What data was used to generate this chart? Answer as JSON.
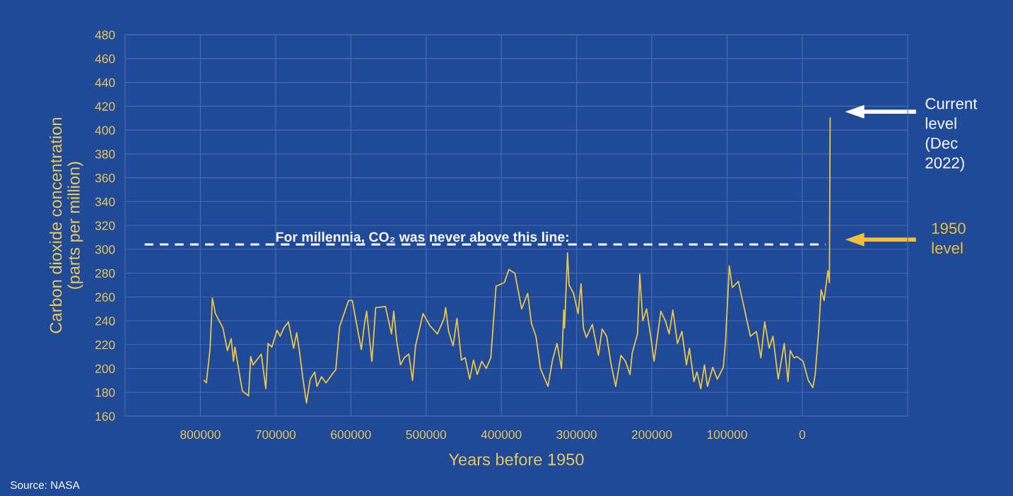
{
  "chart_data": {
    "type": "line",
    "xlabel": "Years before 1950",
    "ylabel": "Carbon dioxide concentration\n(parts per million)",
    "xlim": [
      900000,
      -140000
    ],
    "xticks": [
      800000,
      700000,
      600000,
      500000,
      400000,
      300000,
      200000,
      100000,
      0
    ],
    "ylim": [
      160,
      480
    ],
    "yticks": [
      160,
      180,
      200,
      220,
      240,
      260,
      280,
      300,
      320,
      340,
      360,
      380,
      400,
      420,
      440,
      460,
      480
    ],
    "grid": true,
    "line_style": "solid",
    "marker": "none",
    "series": [
      {
        "color": "#e8c547",
        "x": [
          795000,
          792000,
          787000,
          784000,
          780000,
          770000,
          764000,
          759000,
          756000,
          754000,
          748000,
          744000,
          736000,
          733000,
          730000,
          719000,
          713000,
          710000,
          705000,
          698000,
          694000,
          689000,
          683000,
          676000,
          672000,
          668000,
          664000,
          659000,
          654000,
          648000,
          645000,
          639000,
          633000,
          625000,
          620000,
          615000,
          603000,
          598000,
          592000,
          586000,
          582000,
          579000,
          572000,
          567000,
          554000,
          546000,
          543000,
          539000,
          534000,
          529000,
          523000,
          518000,
          514000,
          504000,
          495000,
          485000,
          476000,
          474000,
          470000,
          464000,
          459000,
          453000,
          448000,
          442000,
          437000,
          432000,
          426000,
          420000,
          414000,
          407000,
          396000,
          390000,
          382000,
          373000,
          365000,
          360000,
          354000,
          348000,
          338000,
          332000,
          326000,
          320000,
          317000,
          316000,
          312000,
          310000,
          304000,
          298000,
          294000,
          291000,
          287000,
          279000,
          271000,
          266000,
          260000,
          254000,
          248000,
          241000,
          235000,
          229000,
          226000,
          219000,
          216000,
          212000,
          207000,
          201000,
          197000,
          188000,
          182000,
          177000,
          172000,
          166000,
          160000,
          154000,
          150000,
          144000,
          140000,
          135000,
          130000,
          126000,
          119000,
          113000,
          105000,
          102000,
          97000,
          93000,
          85000,
          77000,
          69000,
          61000,
          55000,
          50000,
          44000,
          39000,
          32000,
          24000,
          19000,
          16000,
          11000,
          7000,
          -1000,
          -8000,
          -14000,
          -17000,
          -22000,
          -25000,
          -29000,
          -34000,
          -36000,
          -37000
        ],
        "values": [
          190,
          188,
          217,
          259,
          246,
          234,
          215,
          225,
          206,
          218,
          195,
          181,
          177,
          210,
          203,
          212,
          183,
          221,
          218,
          232,
          227,
          234,
          239,
          217,
          230,
          213,
          193,
          171,
          191,
          197,
          185,
          193,
          188,
          195,
          199,
          235,
          257,
          257,
          236,
          216,
          237,
          248,
          206,
          251,
          252,
          229,
          248,
          223,
          203,
          209,
          212,
          190,
          219,
          246,
          236,
          229,
          242,
          251,
          231,
          219,
          242,
          207,
          209,
          191,
          207,
          195,
          206,
          200,
          209,
          269,
          272,
          283,
          280,
          250,
          263,
          238,
          227,
          200,
          185,
          207,
          221,
          200,
          249,
          234,
          297,
          270,
          263,
          246,
          271,
          234,
          226,
          237,
          211,
          233,
          227,
          203,
          185,
          211,
          206,
          195,
          213,
          229,
          279,
          240,
          250,
          225,
          206,
          248,
          240,
          229,
          249,
          221,
          231,
          203,
          217,
          189,
          197,
          183,
          203,
          185,
          201,
          191,
          201,
          223,
          286,
          268,
          273,
          250,
          227,
          231,
          209,
          239,
          217,
          227,
          191,
          221,
          189,
          215,
          209,
          210,
          206,
          190,
          184,
          194,
          234,
          266,
          257,
          282,
          272,
          410
        ]
      }
    ],
    "ref_lines": [
      {
        "axis": "y",
        "value": 304,
        "label": "For millennia, CO₂ was never above this line:",
        "color": "#ffffff",
        "line_style": "dashed"
      }
    ],
    "annotations": [
      "Current\nlevel\n(Dec\n2022)",
      "1950\nlevel",
      "Source: NASA"
    ]
  }
}
